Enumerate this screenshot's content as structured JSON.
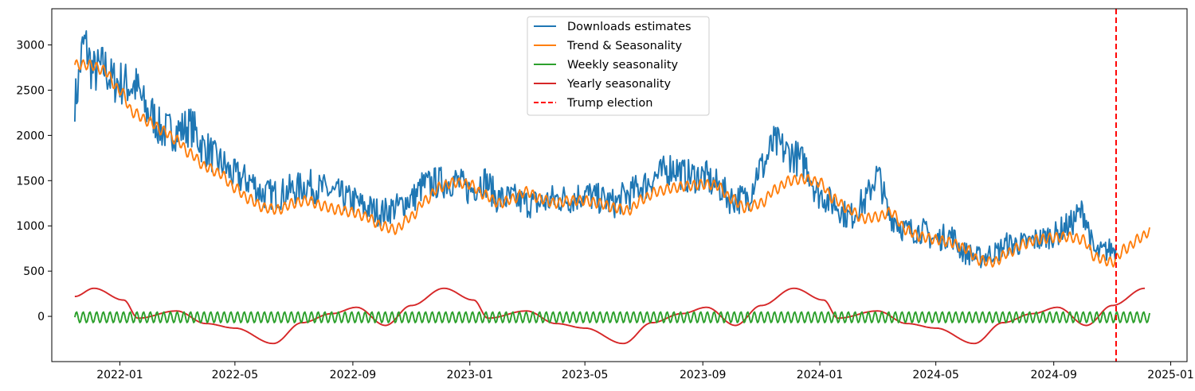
{
  "chart_data": {
    "type": "line",
    "title": "",
    "xlabel": "",
    "ylabel": "",
    "xlim": [
      "2021-10-22",
      "2025-01-18"
    ],
    "ylim": [
      -500,
      3400
    ],
    "grid": false,
    "legend_position": "top-center",
    "x_ticks": [
      "2022-01",
      "2022-05",
      "2022-09",
      "2023-01",
      "2023-05",
      "2023-09",
      "2024-01",
      "2024-05",
      "2024-09",
      "2025-01"
    ],
    "y_ticks": [
      0,
      500,
      1000,
      1500,
      2000,
      2500,
      3000
    ],
    "series": [
      {
        "name": "Downloads estimates",
        "color": "#1f77b4",
        "style": "solid",
        "x": [
          "2021-11-15",
          "2021-11-25",
          "2021-12-05",
          "2021-12-15",
          "2021-12-25",
          "2022-01-15",
          "2022-02-01",
          "2022-02-15",
          "2022-03-01",
          "2022-03-15",
          "2022-04-01",
          "2022-04-15",
          "2022-05-01",
          "2022-05-15",
          "2022-06-01",
          "2022-06-15",
          "2022-07-01",
          "2022-07-15",
          "2022-08-01",
          "2022-08-15",
          "2022-09-01",
          "2022-09-15",
          "2022-10-01",
          "2022-10-15",
          "2022-11-01",
          "2022-11-15",
          "2022-12-01",
          "2022-12-15",
          "2023-01-01",
          "2023-01-15",
          "2023-02-01",
          "2023-02-15",
          "2023-03-01",
          "2023-03-15",
          "2023-04-01",
          "2023-04-15",
          "2023-05-01",
          "2023-05-15",
          "2023-06-01",
          "2023-06-15",
          "2023-07-01",
          "2023-07-15",
          "2023-08-01",
          "2023-08-15",
          "2023-09-01",
          "2023-09-15",
          "2023-10-01",
          "2023-10-15",
          "2023-11-01",
          "2023-11-15",
          "2023-12-01",
          "2023-12-15",
          "2024-01-01",
          "2024-01-15",
          "2024-02-01",
          "2024-02-15",
          "2024-03-01",
          "2024-03-15",
          "2024-04-01",
          "2024-04-15",
          "2024-05-01",
          "2024-05-15",
          "2024-06-01",
          "2024-06-15",
          "2024-07-01",
          "2024-07-15",
          "2024-08-01",
          "2024-08-15",
          "2024-09-01",
          "2024-09-15",
          "2024-10-01",
          "2024-10-15",
          "2024-11-05"
        ],
        "values": [
          2400,
          3000,
          2700,
          2750,
          2600,
          2550,
          2250,
          2050,
          2050,
          2100,
          1850,
          1700,
          1550,
          1500,
          1350,
          1350,
          1400,
          1450,
          1400,
          1350,
          1280,
          1200,
          1150,
          1200,
          1300,
          1450,
          1480,
          1500,
          1400,
          1500,
          1300,
          1300,
          1250,
          1250,
          1300,
          1300,
          1350,
          1300,
          1250,
          1350,
          1450,
          1550,
          1650,
          1550,
          1550,
          1450,
          1300,
          1300,
          1650,
          1900,
          1800,
          1700,
          1350,
          1250,
          1100,
          1250,
          1550,
          1100,
          950,
          950,
          850,
          900,
          700,
          650,
          700,
          800,
          800,
          850,
          900,
          1000,
          1150,
          700,
          750
        ]
      },
      {
        "name": "Trend & Seasonality",
        "color": "#ff7f0e",
        "style": "solid",
        "x": [
          "2021-11-15",
          "2021-12-01",
          "2021-12-15",
          "2022-01-01",
          "2022-01-15",
          "2022-02-01",
          "2022-02-15",
          "2022-03-01",
          "2022-03-15",
          "2022-04-01",
          "2022-04-15",
          "2022-05-01",
          "2022-05-15",
          "2022-06-01",
          "2022-06-15",
          "2022-07-01",
          "2022-07-15",
          "2022-08-01",
          "2022-08-15",
          "2022-09-01",
          "2022-09-15",
          "2022-10-01",
          "2022-10-15",
          "2022-11-01",
          "2022-11-15",
          "2022-12-01",
          "2022-12-15",
          "2023-01-01",
          "2023-01-15",
          "2023-02-01",
          "2023-02-15",
          "2023-03-01",
          "2023-03-15",
          "2023-04-01",
          "2023-04-15",
          "2023-05-01",
          "2023-05-15",
          "2023-06-01",
          "2023-06-15",
          "2023-07-01",
          "2023-07-15",
          "2023-08-01",
          "2023-08-15",
          "2023-09-01",
          "2023-09-15",
          "2023-10-01",
          "2023-10-15",
          "2023-11-01",
          "2023-11-15",
          "2023-12-01",
          "2023-12-15",
          "2024-01-01",
          "2024-01-15",
          "2024-02-01",
          "2024-02-15",
          "2024-03-01",
          "2024-03-15",
          "2024-04-01",
          "2024-04-15",
          "2024-05-01",
          "2024-05-15",
          "2024-06-01",
          "2024-06-15",
          "2024-07-01",
          "2024-07-15",
          "2024-08-01",
          "2024-08-15",
          "2024-09-01",
          "2024-09-15",
          "2024-10-01",
          "2024-10-15",
          "2024-11-01",
          "2024-11-15",
          "2024-12-01",
          "2024-12-10"
        ],
        "values": [
          2780,
          2780,
          2720,
          2500,
          2250,
          2150,
          2050,
          1950,
          1800,
          1650,
          1580,
          1420,
          1300,
          1200,
          1180,
          1250,
          1280,
          1220,
          1180,
          1150,
          1100,
          1000,
          960,
          1100,
          1280,
          1430,
          1480,
          1460,
          1350,
          1250,
          1300,
          1380,
          1300,
          1250,
          1280,
          1280,
          1250,
          1200,
          1170,
          1300,
          1380,
          1420,
          1440,
          1460,
          1450,
          1300,
          1200,
          1250,
          1400,
          1500,
          1520,
          1480,
          1300,
          1180,
          1080,
          1100,
          1150,
          950,
          880,
          850,
          820,
          750,
          620,
          600,
          700,
          800,
          850,
          870,
          880,
          850,
          650,
          600,
          750,
          870,
          940
        ]
      },
      {
        "name": "Weekly seasonality",
        "color": "#2ca02c",
        "style": "solid",
        "x_range": [
          "2021-11-15",
          "2024-12-10"
        ],
        "period_days": 7,
        "amplitude": 60,
        "offset": -10
      },
      {
        "name": "Yearly seasonality",
        "color": "#d62728",
        "style": "solid",
        "x": [
          "2021-11-15",
          "2021-12-05",
          "2022-01-05",
          "2022-01-20",
          "2022-03-01",
          "2022-04-01",
          "2022-05-01",
          "2022-06-10",
          "2022-07-10",
          "2022-08-10",
          "2022-09-05",
          "2022-10-05",
          "2022-11-01",
          "2022-12-05",
          "2023-01-05",
          "2023-01-20",
          "2023-03-01",
          "2023-04-01",
          "2023-05-01",
          "2023-06-10",
          "2023-07-10",
          "2023-08-10",
          "2023-09-05",
          "2023-10-05",
          "2023-11-01",
          "2023-12-05",
          "2024-01-05",
          "2024-01-20",
          "2024-03-01",
          "2024-04-01",
          "2024-05-01",
          "2024-06-10",
          "2024-07-10",
          "2024-08-10",
          "2024-09-05",
          "2024-10-05",
          "2024-11-01",
          "2024-12-05"
        ],
        "values": [
          220,
          310,
          180,
          -20,
          60,
          -80,
          -130,
          -300,
          -70,
          30,
          100,
          -100,
          120,
          310,
          180,
          -20,
          60,
          -80,
          -130,
          -300,
          -70,
          30,
          100,
          -100,
          120,
          310,
          180,
          -20,
          60,
          -80,
          -130,
          -300,
          -70,
          30,
          100,
          -100,
          120,
          310
        ]
      },
      {
        "name": "Trump election",
        "color": "#ff0000",
        "style": "dashed",
        "vline_x": "2024-11-05"
      }
    ]
  }
}
